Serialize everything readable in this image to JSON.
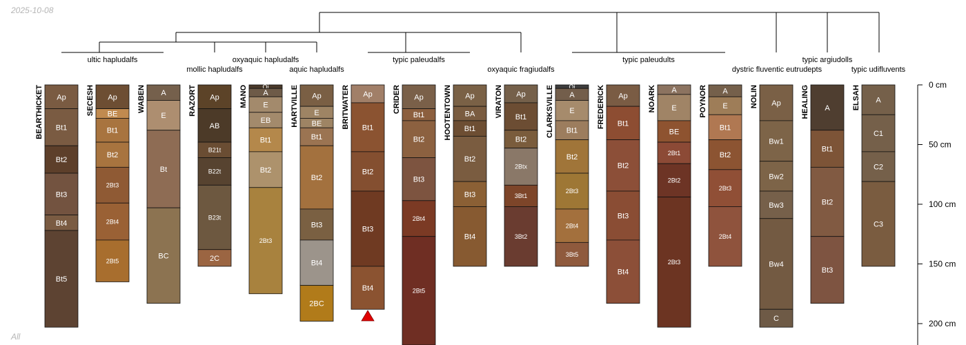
{
  "stamp_text": "2025-10-08",
  "footer_text": "All",
  "depth_axis": {
    "unit": "cm",
    "ticks": [
      {
        "value": 0,
        "label": "0 cm"
      },
      {
        "value": 50,
        "label": "50 cm"
      },
      {
        "value": 100,
        "label": "100 cm"
      },
      {
        "value": 150,
        "label": "150 cm"
      },
      {
        "value": 200,
        "label": "200 cm"
      }
    ]
  },
  "dendrogram": {
    "groups": [
      {
        "label": "ultic hapludalfs"
      },
      {
        "label": "mollic hapludalfs"
      },
      {
        "label": "oxyaquic hapludalfs"
      },
      {
        "label": "aquic hapludalfs"
      },
      {
        "label": "typic paleudalfs"
      },
      {
        "label": "oxyaquic fragiudalfs"
      },
      {
        "label": "typic paleudults"
      },
      {
        "label": "dystric fluventic eutrudepts"
      },
      {
        "label": "typic argiudolls"
      },
      {
        "label": "typic udifluvents"
      }
    ]
  },
  "profiles": [
    {
      "name": "BEARTHICKET",
      "horizons": [
        {
          "name": "Ap",
          "top": 0,
          "bottom": 20,
          "color": "#7a5b42"
        },
        {
          "name": "Bt1",
          "top": 20,
          "bottom": 51,
          "color": "#7a5b42"
        },
        {
          "name": "Bt2",
          "top": 51,
          "bottom": 74,
          "color": "#5d3f2a"
        },
        {
          "name": "Bt3",
          "top": 74,
          "bottom": 109,
          "color": "#735340"
        },
        {
          "name": "Bt4",
          "top": 109,
          "bottom": 122,
          "color": "#7a5b42"
        },
        {
          "name": "Bt5",
          "top": 122,
          "bottom": 203,
          "color": "#5d4332"
        }
      ]
    },
    {
      "name": "SECESH",
      "horizons": [
        {
          "name": "Ap",
          "top": 0,
          "bottom": 20,
          "color": "#6d4e33"
        },
        {
          "name": "BE",
          "top": 20,
          "bottom": 28,
          "color": "#c18a4f"
        },
        {
          "name": "Bt1",
          "top": 28,
          "bottom": 48,
          "color": "#a8743f"
        },
        {
          "name": "Bt2",
          "top": 48,
          "bottom": 69,
          "color": "#a8743f"
        },
        {
          "name": "2Bt3",
          "top": 69,
          "bottom": 99,
          "color": "#8f5a34"
        },
        {
          "name": "2Bt4",
          "top": 99,
          "bottom": 130,
          "color": "#9a6135"
        },
        {
          "name": "2Bt5",
          "top": 130,
          "bottom": 165,
          "color": "#a86e2e"
        }
      ]
    },
    {
      "name": "WABEN",
      "horizons": [
        {
          "name": "A",
          "top": 0,
          "bottom": 13,
          "color": "#75604c"
        },
        {
          "name": "E",
          "top": 13,
          "bottom": 38,
          "color": "#ad8e70"
        },
        {
          "name": "Bt",
          "top": 38,
          "bottom": 103,
          "color": "#8e6c54"
        },
        {
          "name": "BC",
          "top": 103,
          "bottom": 183,
          "color": "#8c7351"
        }
      ]
    },
    {
      "name": "RAZORT",
      "horizons": [
        {
          "name": "Ap",
          "top": 0,
          "bottom": 20,
          "color": "#5c4328"
        },
        {
          "name": "AB",
          "top": 20,
          "bottom": 48,
          "color": "#4c3a28"
        },
        {
          "name": "B21t",
          "top": 48,
          "bottom": 61,
          "color": "#6a4d33"
        },
        {
          "name": "B22t",
          "top": 61,
          "bottom": 84,
          "color": "#574330"
        },
        {
          "name": "B23t",
          "top": 84,
          "bottom": 138,
          "color": "#6d5840"
        },
        {
          "name": "2C",
          "top": 138,
          "bottom": 152,
          "color": "#9b6542"
        }
      ]
    },
    {
      "name": "MANO",
      "horizons": [
        {
          "name": "Oi",
          "top": 0,
          "bottom": 3,
          "color": "#4a3a2a"
        },
        {
          "name": "A",
          "top": 3,
          "bottom": 10,
          "color": "#6e5b48"
        },
        {
          "name": "E",
          "top": 10,
          "bottom": 23,
          "color": "#a38a6c"
        },
        {
          "name": "EB",
          "top": 23,
          "bottom": 36,
          "color": "#a38a6c"
        },
        {
          "name": "Bt1",
          "top": 36,
          "bottom": 56,
          "color": "#b4884b"
        },
        {
          "name": "Bt2",
          "top": 56,
          "bottom": 86,
          "color": "#ad926c"
        },
        {
          "name": "2Bt3",
          "top": 86,
          "bottom": 175,
          "color": "#a8823e"
        }
      ]
    },
    {
      "name": "HARTVILLE",
      "horizons": [
        {
          "name": "Ap",
          "top": 0,
          "bottom": 18,
          "color": "#7a5f44"
        },
        {
          "name": "E",
          "top": 18,
          "bottom": 28,
          "color": "#9e8464"
        },
        {
          "name": "BE",
          "top": 28,
          "bottom": 36,
          "color": "#9e8464"
        },
        {
          "name": "Bt1",
          "top": 36,
          "bottom": 51,
          "color": "#9b7452"
        },
        {
          "name": "Bt2",
          "top": 51,
          "bottom": 104,
          "color": "#a3713e"
        },
        {
          "name": "Bt3",
          "top": 104,
          "bottom": 130,
          "color": "#7a6042"
        },
        {
          "name": "Bt4",
          "top": 130,
          "bottom": 168,
          "color": "#9c948b"
        },
        {
          "name": "2BC",
          "top": 168,
          "bottom": 198,
          "color": "#b17b1a"
        }
      ]
    },
    {
      "name": "BRITWATER",
      "horizons": [
        {
          "name": "Ap",
          "top": 0,
          "bottom": 15,
          "color": "#a17f68"
        },
        {
          "name": "Bt1",
          "top": 15,
          "bottom": 56,
          "color": "#8b5331"
        },
        {
          "name": "Bt2",
          "top": 56,
          "bottom": 89,
          "color": "#844f30"
        },
        {
          "name": "Bt3",
          "top": 89,
          "bottom": 152,
          "color": "#6f3a22"
        },
        {
          "name": "Bt4",
          "top": 152,
          "bottom": 188,
          "color": "#8b5331"
        }
      ]
    },
    {
      "name": "CRIDER",
      "horizons": [
        {
          "name": "Ap",
          "top": 0,
          "bottom": 20,
          "color": "#7a6049"
        },
        {
          "name": "Bt1",
          "top": 20,
          "bottom": 30,
          "color": "#8c5f3e"
        },
        {
          "name": "Bt2",
          "top": 30,
          "bottom": 61,
          "color": "#8c6140"
        },
        {
          "name": "Bt3",
          "top": 61,
          "bottom": 97,
          "color": "#7d5440"
        },
        {
          "name": "2Bt4",
          "top": 97,
          "bottom": 127,
          "color": "#7b3a24"
        },
        {
          "name": "2Bt5",
          "top": 127,
          "bottom": 218,
          "color": "#6f2e23"
        }
      ]
    },
    {
      "name": "HOOTENTOWN",
      "horizons": [
        {
          "name": "Ap",
          "top": 0,
          "bottom": 18,
          "color": "#7a6146"
        },
        {
          "name": "BA",
          "top": 18,
          "bottom": 30,
          "color": "#7a5c40"
        },
        {
          "name": "Bt1",
          "top": 30,
          "bottom": 43,
          "color": "#6d4e33"
        },
        {
          "name": "Bt2",
          "top": 43,
          "bottom": 81,
          "color": "#7a5c40"
        },
        {
          "name": "Bt3",
          "top": 81,
          "bottom": 102,
          "color": "#8b6035"
        },
        {
          "name": "Bt4",
          "top": 102,
          "bottom": 152,
          "color": "#875a31"
        }
      ]
    },
    {
      "name": "VIRATON",
      "horizons": [
        {
          "name": "Ap",
          "top": 0,
          "bottom": 15,
          "color": "#75604a"
        },
        {
          "name": "Bt1",
          "top": 15,
          "bottom": 38,
          "color": "#6c4d33"
        },
        {
          "name": "Bt2",
          "top": 38,
          "bottom": 53,
          "color": "#7a5c3c"
        },
        {
          "name": "2Btx",
          "top": 53,
          "bottom": 84,
          "color": "#8a7868"
        },
        {
          "name": "3Bt1",
          "top": 84,
          "bottom": 102,
          "color": "#7d4529"
        },
        {
          "name": "3Bt2",
          "top": 102,
          "bottom": 152,
          "color": "#6a3c30"
        }
      ]
    },
    {
      "name": "CLARKSVILLE",
      "horizons": [
        {
          "name": "Oi",
          "top": 0,
          "bottom": 3,
          "color": "#3d3d3d"
        },
        {
          "name": "A",
          "top": 3,
          "bottom": 13,
          "color": "#735e4b"
        },
        {
          "name": "E",
          "top": 13,
          "bottom": 30,
          "color": "#a68b6c"
        },
        {
          "name": "Bt1",
          "top": 30,
          "bottom": 46,
          "color": "#9c7d5e"
        },
        {
          "name": "Bt2",
          "top": 46,
          "bottom": 74,
          "color": "#a07539"
        },
        {
          "name": "2Bt3",
          "top": 74,
          "bottom": 104,
          "color": "#9e7735"
        },
        {
          "name": "2Bt4",
          "top": 104,
          "bottom": 132,
          "color": "#a3703d"
        },
        {
          "name": "3Bt5",
          "top": 132,
          "bottom": 152,
          "color": "#8f5a3d"
        }
      ]
    },
    {
      "name": "FREDERICK",
      "horizons": [
        {
          "name": "Ap",
          "top": 0,
          "bottom": 18,
          "color": "#7a5c44"
        },
        {
          "name": "Bt1",
          "top": 18,
          "bottom": 46,
          "color": "#8d4d32"
        },
        {
          "name": "Bt2",
          "top": 46,
          "bottom": 89,
          "color": "#8c4f38"
        },
        {
          "name": "Bt3",
          "top": 89,
          "bottom": 130,
          "color": "#8a4d34"
        },
        {
          "name": "Bt4",
          "top": 130,
          "bottom": 183,
          "color": "#8c4f38"
        }
      ]
    },
    {
      "name": "NOARK",
      "horizons": [
        {
          "name": "A",
          "top": 0,
          "bottom": 8,
          "color": "#8c7360"
        },
        {
          "name": "E",
          "top": 8,
          "bottom": 30,
          "color": "#a08466"
        },
        {
          "name": "BE",
          "top": 30,
          "bottom": 48,
          "color": "#8e5330"
        },
        {
          "name": "2Bt1",
          "top": 48,
          "bottom": 66,
          "color": "#8c4a36"
        },
        {
          "name": "2Bt2",
          "top": 66,
          "bottom": 94,
          "color": "#6d3425"
        },
        {
          "name": "2Bt3",
          "top": 94,
          "bottom": 203,
          "color": "#6c3422"
        }
      ]
    },
    {
      "name": "POYNOR",
      "horizons": [
        {
          "name": "A",
          "top": 0,
          "bottom": 10,
          "color": "#75604b"
        },
        {
          "name": "E",
          "top": 10,
          "bottom": 25,
          "color": "#9e7d58"
        },
        {
          "name": "Bt1",
          "top": 25,
          "bottom": 46,
          "color": "#b07852"
        },
        {
          "name": "Bt2",
          "top": 46,
          "bottom": 71,
          "color": "#8c5432"
        },
        {
          "name": "2Bt3",
          "top": 71,
          "bottom": 102,
          "color": "#904f36"
        },
        {
          "name": "2Bt4",
          "top": 102,
          "bottom": 152,
          "color": "#8f533d"
        }
      ]
    },
    {
      "name": "NOLIN",
      "horizons": [
        {
          "name": "Ap",
          "top": 0,
          "bottom": 30,
          "color": "#7a6046"
        },
        {
          "name": "Bw1",
          "top": 30,
          "bottom": 64,
          "color": "#7d6448"
        },
        {
          "name": "Bw2",
          "top": 64,
          "bottom": 89,
          "color": "#7d6448"
        },
        {
          "name": "Bw3",
          "top": 89,
          "bottom": 112,
          "color": "#76604a"
        },
        {
          "name": "Bw4",
          "top": 112,
          "bottom": 188,
          "color": "#735a42"
        },
        {
          "name": "C",
          "top": 188,
          "bottom": 203,
          "color": "#6e5a46"
        }
      ]
    },
    {
      "name": "HEALING",
      "horizons": [
        {
          "name": "A",
          "top": 0,
          "bottom": 38,
          "color": "#4f3e30"
        },
        {
          "name": "Bt1",
          "top": 38,
          "bottom": 69,
          "color": "#7d5437"
        },
        {
          "name": "Bt2",
          "top": 69,
          "bottom": 127,
          "color": "#815a42"
        },
        {
          "name": "Bt3",
          "top": 127,
          "bottom": 183,
          "color": "#7e5441"
        }
      ]
    },
    {
      "name": "ELSAH",
      "horizons": [
        {
          "name": "A",
          "top": 0,
          "bottom": 25,
          "color": "#75604a"
        },
        {
          "name": "C1",
          "top": 25,
          "bottom": 56,
          "color": "#75604a"
        },
        {
          "name": "C2",
          "top": 56,
          "bottom": 81,
          "color": "#75604a"
        },
        {
          "name": "C3",
          "top": 81,
          "bottom": 152,
          "color": "#7a5c40"
        }
      ]
    }
  ]
}
